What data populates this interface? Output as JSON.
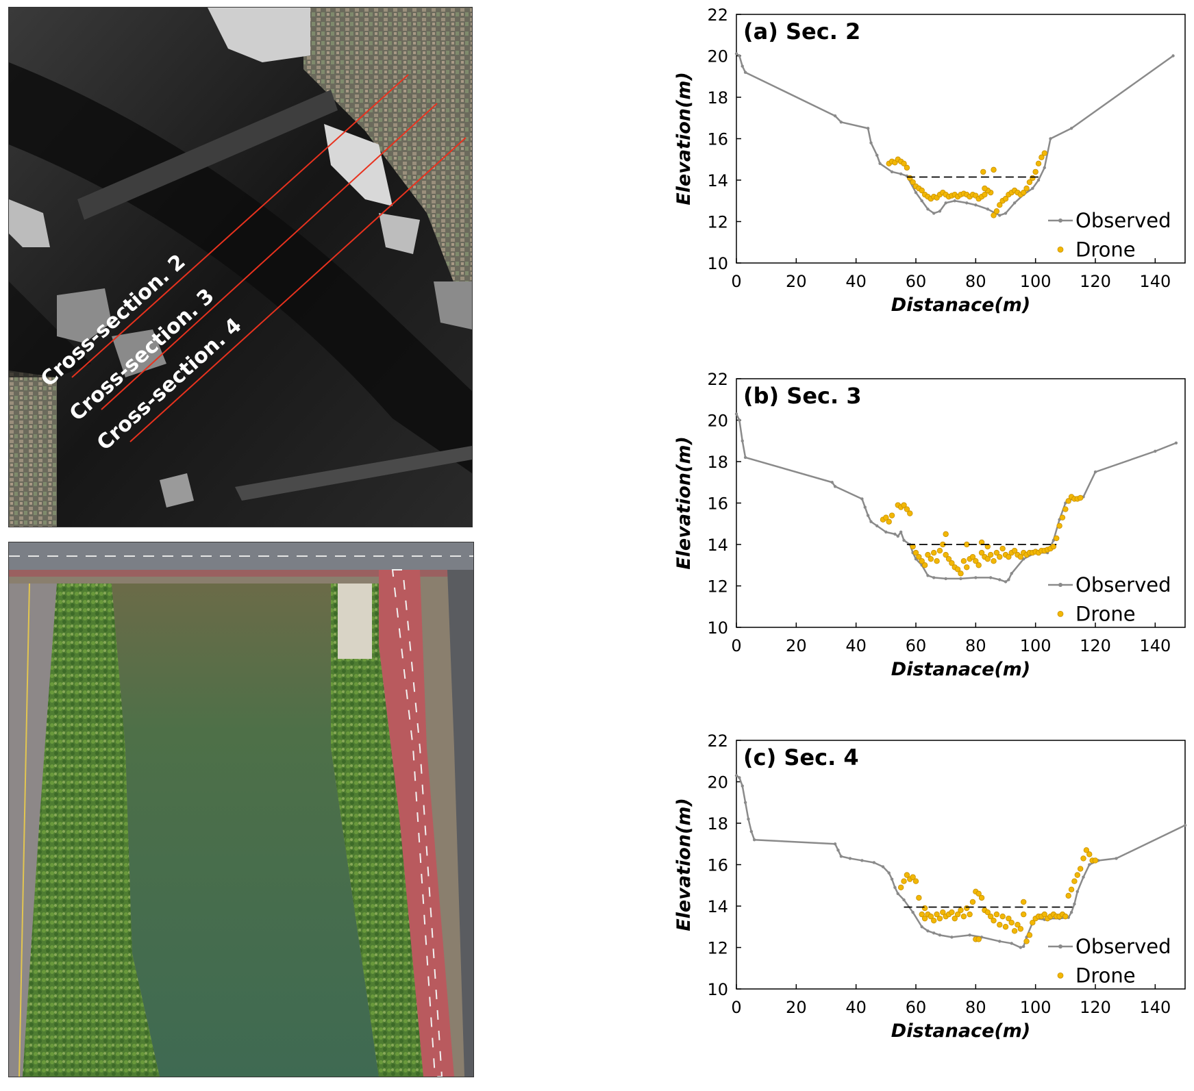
{
  "left_panels": {
    "dsm_labels": [
      "Cross-section. 2",
      "Cross-section. 3",
      "Cross-section. 4"
    ],
    "colors": {
      "section_line": "#e8321e",
      "label": "#ffffff"
    }
  },
  "colors": {
    "observed": "#8a8a8a",
    "drone": "#f2b705",
    "drone_edge": "#c78f00",
    "water_level": "#000000"
  },
  "chart_data": [
    {
      "type": "scatter",
      "title": "(a)  Sec. 2",
      "xlabel": "Distanace(m)",
      "ylabel": "Elevation(m)",
      "xlim": [
        0,
        150
      ],
      "ylim": [
        10,
        22
      ],
      "xticks": [
        0,
        20,
        40,
        60,
        80,
        100,
        120,
        140
      ],
      "yticks": [
        10,
        12,
        14,
        16,
        18,
        20,
        22
      ],
      "legend": "bottom-right",
      "series": [
        {
          "name": "Observed",
          "type": "line",
          "x": [
            0,
            1,
            2,
            3,
            33,
            35,
            44,
            45,
            47,
            48,
            52,
            55,
            57,
            60,
            62,
            64,
            66,
            68,
            70,
            73,
            77,
            80,
            84,
            88,
            90,
            93,
            96,
            99,
            101,
            103,
            105,
            112,
            146
          ],
          "y": [
            20.1,
            20.0,
            19.5,
            19.2,
            17.1,
            16.8,
            16.5,
            15.8,
            15.2,
            14.8,
            14.4,
            14.3,
            14.2,
            13.4,
            13.0,
            12.6,
            12.4,
            12.5,
            12.9,
            13.0,
            12.9,
            12.8,
            12.6,
            12.3,
            12.4,
            12.9,
            13.3,
            13.6,
            14.0,
            14.6,
            16.0,
            16.5,
            20.0
          ]
        },
        {
          "name": "Drone",
          "type": "scatter",
          "x": [
            51,
            52,
            53,
            54,
            55,
            56,
            57,
            58,
            59,
            60,
            61,
            62,
            63,
            64,
            65,
            66,
            67,
            68,
            69,
            70,
            71,
            72,
            73,
            74,
            75,
            76,
            77,
            78,
            79,
            80,
            81,
            82,
            83,
            84,
            85,
            86,
            87,
            88,
            89,
            90,
            91,
            92,
            93,
            94,
            95,
            96,
            97,
            98,
            99,
            100,
            101,
            102,
            103,
            82.5,
            86,
            84,
            83
          ],
          "y": [
            14.8,
            14.9,
            14.85,
            15.0,
            14.9,
            14.8,
            14.6,
            14.1,
            13.9,
            13.7,
            13.6,
            13.5,
            13.3,
            13.2,
            13.1,
            13.2,
            13.15,
            13.3,
            13.4,
            13.3,
            13.2,
            13.25,
            13.3,
            13.2,
            13.3,
            13.35,
            13.3,
            13.2,
            13.3,
            13.25,
            13.1,
            13.2,
            13.3,
            13.5,
            13.4,
            12.3,
            12.5,
            12.8,
            13.0,
            13.1,
            13.3,
            13.4,
            13.5,
            13.4,
            13.3,
            13.4,
            13.6,
            13.9,
            14.1,
            14.4,
            14.8,
            15.1,
            15.3,
            14.4,
            14.5,
            13.5,
            13.6
          ]
        },
        {
          "name": "",
          "type": "dashed",
          "x": [
            57,
            101
          ],
          "y": [
            14.15,
            14.15
          ]
        }
      ]
    },
    {
      "type": "scatter",
      "title": "(b)  Sec. 3",
      "xlabel": "Distanace(m)",
      "ylabel": "Elevation(m)",
      "xlim": [
        0,
        150
      ],
      "ylim": [
        10,
        22
      ],
      "xticks": [
        0,
        20,
        40,
        60,
        80,
        100,
        120,
        140
      ],
      "yticks": [
        10,
        12,
        14,
        16,
        18,
        20,
        22
      ],
      "legend": "bottom-right",
      "series": [
        {
          "name": "Observed",
          "type": "line",
          "x": [
            0,
            1,
            2,
            3,
            32,
            33,
            42,
            43,
            44,
            45,
            47,
            50,
            53,
            54,
            55,
            56,
            58,
            59,
            60,
            62,
            64,
            66,
            70,
            75,
            80,
            85,
            88,
            90,
            91,
            92,
            96,
            100,
            104,
            106,
            108,
            110,
            112,
            116,
            120,
            140,
            147
          ],
          "y": [
            20.3,
            20.0,
            19.0,
            18.2,
            17.0,
            16.8,
            16.2,
            15.8,
            15.4,
            15.1,
            14.9,
            14.6,
            14.5,
            14.4,
            14.6,
            14.2,
            14.0,
            13.6,
            13.3,
            13.0,
            12.5,
            12.4,
            12.35,
            12.35,
            12.4,
            12.4,
            12.3,
            12.2,
            12.3,
            12.6,
            13.3,
            13.6,
            13.6,
            14.2,
            15.2,
            16.0,
            16.2,
            16.3,
            17.5,
            18.5,
            18.9
          ]
        },
        {
          "name": "Drone",
          "type": "scatter",
          "x": [
            49,
            50,
            51,
            52,
            54,
            55,
            56,
            57,
            58,
            59,
            60,
            61,
            62,
            63,
            64,
            65,
            66,
            67,
            68,
            69,
            70,
            71,
            72,
            73,
            74,
            75,
            76,
            77,
            78,
            79,
            80,
            81,
            82,
            83,
            84,
            85,
            86,
            87,
            88,
            89,
            90,
            91,
            92,
            93,
            94,
            95,
            96,
            97,
            98,
            99,
            100,
            101,
            102,
            103,
            104,
            105,
            106,
            107,
            108,
            109,
            110,
            111,
            112,
            113,
            114,
            115,
            70,
            82,
            84,
            77
          ],
          "y": [
            15.2,
            15.3,
            15.1,
            15.4,
            15.9,
            15.8,
            15.9,
            15.7,
            15.5,
            13.9,
            13.6,
            13.4,
            13.2,
            13.0,
            13.5,
            13.3,
            13.6,
            13.2,
            13.7,
            14.0,
            13.5,
            13.3,
            13.1,
            12.9,
            12.8,
            12.6,
            13.2,
            12.9,
            13.3,
            13.4,
            13.2,
            13.0,
            13.6,
            13.4,
            13.3,
            13.5,
            13.2,
            13.6,
            13.4,
            13.8,
            13.5,
            13.4,
            13.6,
            13.7,
            13.5,
            13.4,
            13.6,
            13.5,
            13.6,
            13.6,
            13.65,
            13.6,
            13.7,
            13.7,
            13.75,
            13.8,
            13.9,
            14.3,
            14.9,
            15.3,
            15.7,
            16.1,
            16.3,
            16.2,
            16.2,
            16.25,
            14.5,
            14.1,
            13.9,
            14.0
          ]
        },
        {
          "name": "",
          "type": "dashed",
          "x": [
            57,
            107
          ],
          "y": [
            14.0,
            14.0
          ]
        }
      ]
    },
    {
      "type": "scatter",
      "title": "(c)  Sec. 4",
      "xlabel": "Distanace(m)",
      "ylabel": "Elevation(m)",
      "xlim": [
        0,
        150
      ],
      "ylim": [
        10,
        22
      ],
      "xticks": [
        0,
        20,
        40,
        60,
        80,
        100,
        120,
        140
      ],
      "yticks": [
        10,
        12,
        14,
        16,
        18,
        20,
        22
      ],
      "legend": "bottom-right",
      "series": [
        {
          "name": "Observed",
          "type": "line",
          "x": [
            0,
            1,
            2,
            3,
            4,
            5,
            6,
            33,
            34,
            35,
            38,
            42,
            46,
            49,
            51,
            52,
            53,
            54,
            56,
            59,
            62,
            64,
            66,
            68,
            72,
            78,
            82,
            88,
            92,
            95,
            96,
            97,
            99,
            100,
            103,
            105,
            108,
            111,
            112,
            113,
            114,
            116,
            118,
            121,
            127,
            150
          ],
          "y": [
            20.3,
            20.2,
            19.8,
            19.0,
            18.2,
            17.6,
            17.2,
            17.0,
            16.7,
            16.4,
            16.3,
            16.2,
            16.1,
            15.9,
            15.6,
            15.3,
            14.9,
            14.6,
            14.3,
            13.7,
            13.0,
            12.8,
            12.7,
            12.6,
            12.5,
            12.6,
            12.5,
            12.3,
            12.2,
            12.0,
            12.05,
            12.5,
            13.2,
            13.4,
            13.35,
            13.4,
            13.4,
            13.45,
            13.7,
            14.1,
            14.7,
            15.4,
            16.0,
            16.2,
            16.3,
            17.9
          ]
        },
        {
          "name": "Drone",
          "type": "scatter",
          "x": [
            55,
            56,
            57,
            58,
            59,
            60,
            61,
            62,
            63,
            64,
            65,
            66,
            67,
            68,
            69,
            70,
            71,
            72,
            73,
            74,
            75,
            76,
            77,
            78,
            79,
            80,
            81,
            82,
            83,
            84,
            85,
            86,
            87,
            88,
            89,
            90,
            91,
            92,
            93,
            94,
            95,
            96,
            97,
            98,
            99,
            100,
            101,
            102,
            103,
            104,
            105,
            106,
            107,
            108,
            109,
            110,
            111,
            112,
            113,
            114,
            115,
            116,
            117,
            118,
            119,
            120,
            63,
            80,
            81,
            96
          ],
          "y": [
            14.9,
            15.2,
            15.5,
            15.3,
            15.4,
            15.2,
            14.4,
            13.6,
            13.4,
            13.6,
            13.5,
            13.3,
            13.6,
            13.4,
            13.7,
            13.5,
            13.6,
            13.7,
            13.4,
            13.6,
            13.8,
            13.5,
            13.9,
            13.6,
            14.2,
            14.7,
            14.6,
            14.4,
            13.8,
            13.7,
            13.5,
            13.3,
            13.6,
            13.1,
            13.5,
            13.0,
            13.4,
            13.2,
            12.8,
            13.1,
            12.9,
            13.6,
            12.3,
            12.6,
            13.2,
            13.4,
            13.5,
            13.5,
            13.6,
            13.4,
            13.5,
            13.6,
            13.5,
            13.5,
            13.6,
            13.5,
            14.5,
            14.8,
            15.2,
            15.5,
            15.8,
            16.3,
            16.7,
            16.5,
            16.2,
            16.2,
            13.9,
            12.4,
            12.4,
            14.2
          ]
        },
        {
          "name": "",
          "type": "dashed",
          "x": [
            56,
            113
          ],
          "y": [
            13.95,
            13.95
          ]
        }
      ]
    }
  ]
}
